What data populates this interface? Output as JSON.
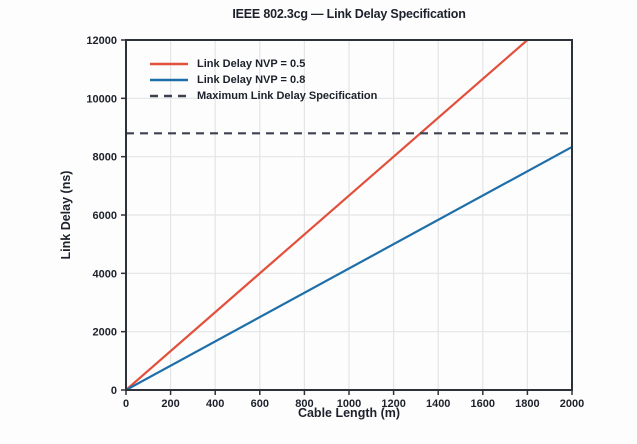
{
  "chart_data": {
    "type": "line",
    "title": "IEEE 802.3cg — Link Delay Specification",
    "xlabel": "Cable Length (m)",
    "ylabel": "Link Delay (ns)",
    "xlim": [
      0,
      2000
    ],
    "ylim": [
      0,
      12000
    ],
    "xticks": [
      0,
      200,
      400,
      600,
      800,
      1000,
      1200,
      1400,
      1600,
      1800,
      2000
    ],
    "yticks": [
      0,
      2000,
      4000,
      6000,
      8000,
      10000,
      12000
    ],
    "grid": true,
    "legend_position": "upper-left-inside",
    "series": [
      {
        "name": "Link Delay NVP = 0.5",
        "color": "#e2503c",
        "style": "solid",
        "x": [
          0,
          1800
        ],
        "y": [
          0,
          12000
        ]
      },
      {
        "name": "Link Delay NVP = 0.8",
        "color": "#1e6fa9",
        "style": "solid",
        "x": [
          0,
          2000
        ],
        "y": [
          0,
          8333
        ]
      },
      {
        "name": "Maximum Link Delay Specification",
        "color": "#3c4250",
        "style": "dashed",
        "x": [
          0,
          2000
        ],
        "y": [
          8800,
          8800
        ]
      }
    ]
  },
  "colors": {
    "text": "#1d212b",
    "grid": "#e3e5e7",
    "frame": "#2d3139",
    "background": "#fdfdfd"
  }
}
